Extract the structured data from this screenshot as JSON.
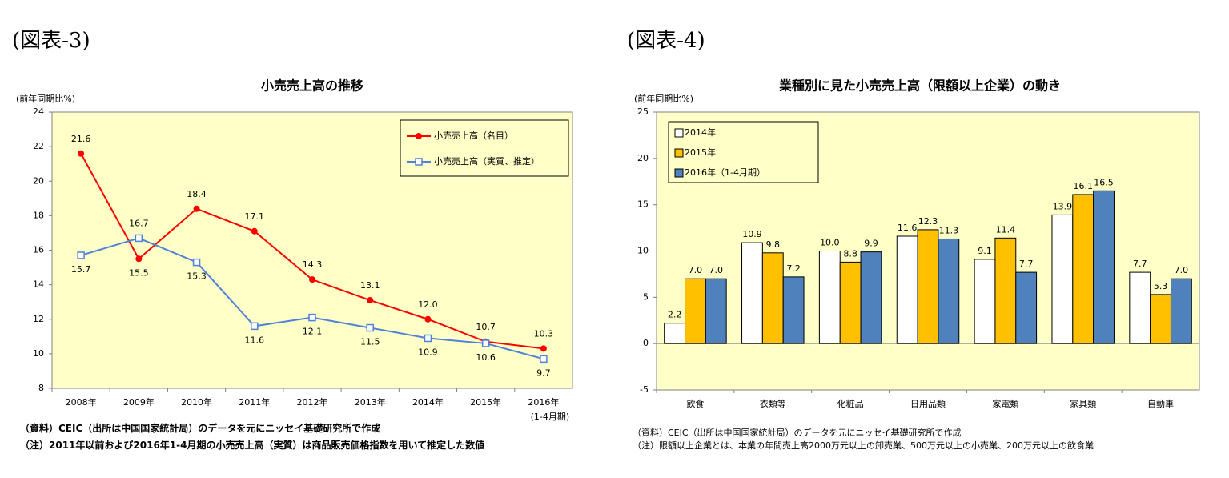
{
  "figures": [
    {
      "label": "(図表-3)",
      "notes": [
        "（資料）CEIC（出所は中国国家統計局）のデータを元にニッセイ基礎研究所で作成",
        "（注）2011年以前および2016年1-4月期の小売売上高（実質）は商品販売価格指数を用いて推定した数値"
      ]
    },
    {
      "label": "(図表-4)",
      "notes": [
        "（資料）CEIC（出所は中国国家統計局）のデータを元にニッセイ基礎研究所で作成",
        "（注）限額以上企業とは、本業の年間売上高2000万元以上の卸売業、500万元以上の小売業、200万元以上の飲食業"
      ]
    }
  ],
  "chart_data": [
    {
      "type": "line",
      "title": "小売売上高の推移",
      "y_label": "(前年同期比%)",
      "categories": [
        "2008年",
        "2009年",
        "2010年",
        "2011年",
        "2012年",
        "2013年",
        "2014年",
        "2015年",
        "2016年"
      ],
      "last_category_note": "(1-4月期)",
      "series": [
        {
          "name": "小売売上高（名目）",
          "color": "#ff0000",
          "marker": "circle",
          "values": [
            21.6,
            15.5,
            18.4,
            17.1,
            14.3,
            13.1,
            12.0,
            10.7,
            10.3
          ],
          "value_labels": [
            "21.6",
            "15.5",
            "18.4",
            "17.1",
            "14.3",
            "13.1",
            "12.0",
            "10.7",
            "10.3"
          ]
        },
        {
          "name": "小売売上高（実質、推定）",
          "color": "#4f81d9",
          "marker": "square",
          "values": [
            15.7,
            16.7,
            15.3,
            11.6,
            12.1,
            11.5,
            10.9,
            10.6,
            9.7
          ],
          "value_labels": [
            "15.7",
            "16.7",
            "15.3",
            "11.6",
            "12.1",
            "11.5",
            "10.9",
            "10.6",
            "9.7"
          ]
        }
      ],
      "ylim": [
        8,
        24
      ],
      "yticks": [
        8,
        10,
        12,
        14,
        16,
        18,
        20,
        22,
        24
      ],
      "legend": "upper right"
    },
    {
      "type": "bar",
      "title": "業種別に見た小売売上高（限額以上企業）の動き",
      "y_label": "(前年同期比%)",
      "categories": [
        "飲食",
        "衣類等",
        "化粧品",
        "日用品類",
        "家電類",
        "家具類",
        "自動車"
      ],
      "series": [
        {
          "name": "2014年",
          "color": "#ffffff",
          "values": [
            2.2,
            10.9,
            10.0,
            11.6,
            9.1,
            13.9,
            7.7
          ],
          "value_labels": [
            "2.2",
            "10.9",
            "10.0",
            "11.6",
            "9.1",
            "13.9",
            "7.7"
          ]
        },
        {
          "name": "2015年",
          "color": "#ffc000",
          "values": [
            7.0,
            9.8,
            8.8,
            12.3,
            11.4,
            16.1,
            5.3
          ],
          "value_labels": [
            "7.0",
            "9.8",
            "8.8",
            "12.3",
            "11.4",
            "16.1",
            "5.3"
          ]
        },
        {
          "name": "2016年（1-4月期）",
          "color": "#4f81bd",
          "values": [
            7.0,
            7.2,
            9.9,
            11.3,
            7.7,
            16.5,
            7.0
          ],
          "value_labels": [
            "7.0",
            "7.2",
            "9.9",
            "11.3",
            "7.7",
            "16.5",
            "7.0"
          ]
        }
      ],
      "ylim": [
        -5,
        25
      ],
      "yticks": [
        -5,
        0,
        5,
        10,
        15,
        20,
        25
      ],
      "legend": "upper left"
    }
  ]
}
